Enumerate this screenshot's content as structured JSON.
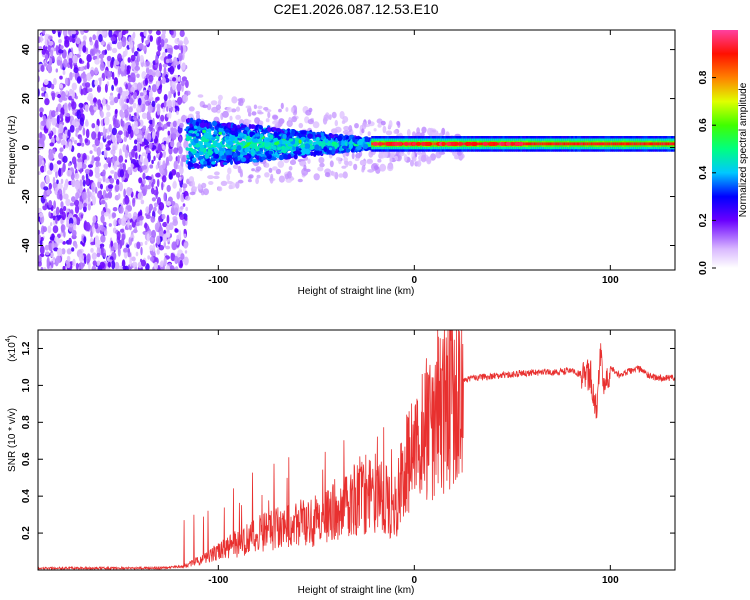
{
  "chart_data": [
    {
      "type": "heatmap",
      "title": "C2E1.2026.087.12.53.E10",
      "xlabel": "Height of straight line (km)",
      "ylabel": "Frequency (Hz)",
      "xlim": [
        -192,
        133
      ],
      "ylim": [
        -50,
        48
      ],
      "xticks": [
        -100,
        0,
        100
      ],
      "yticks": [
        -40,
        -20,
        0,
        20,
        40
      ],
      "colorbar": {
        "label": "Normalized spectral amplitude",
        "range": [
          0,
          1
        ],
        "ticks": [
          0.0,
          0.2,
          0.4,
          0.6,
          0.8
        ]
      },
      "description_regions": [
        {
          "x_range": [
            -192,
            -116
          ],
          "freq_range": [
            -50,
            48
          ],
          "amplitude": "0.0-0.25 scattered noise"
        },
        {
          "x_range": [
            -116,
            -20
          ],
          "freq_range": [
            -10,
            12
          ],
          "amplitude": "0.2-0.5 broadening band"
        },
        {
          "x_range": [
            -20,
            133
          ],
          "freq_range": [
            -1,
            4
          ],
          "amplitude": "0.5-0.95 narrow line near 1.5 Hz"
        }
      ]
    },
    {
      "type": "line",
      "xlabel": "Height of straight line (km)",
      "ylabel": "SNR (10 * v/v)",
      "multiplier_label": "(x10",
      "multiplier_exponent": "4",
      "xlim": [
        -192,
        133
      ],
      "ylim": [
        0,
        1.3
      ],
      "xticks": [
        -100,
        0,
        100
      ],
      "yticks": [
        0.2,
        0.4,
        0.6,
        0.8,
        1.0,
        1.2
      ],
      "series": [
        {
          "name": "SNR",
          "color": "#e8302f",
          "x": [
            -192,
            -170,
            -150,
            -130,
            -118,
            -110,
            -100,
            -90,
            -80,
            -70,
            -60,
            -50,
            -40,
            -30,
            -22,
            -15,
            -10,
            -5,
            0,
            5,
            10,
            15,
            20,
            25,
            30,
            40,
            50,
            60,
            70,
            80,
            85,
            90,
            93,
            95,
            97,
            100,
            105,
            110,
            115,
            120,
            125,
            133
          ],
          "y": [
            0.01,
            0.01,
            0.01,
            0.01,
            0.02,
            0.05,
            0.1,
            0.15,
            0.2,
            0.23,
            0.25,
            0.28,
            0.32,
            0.4,
            0.45,
            0.38,
            0.35,
            0.55,
            0.7,
            0.75,
            0.82,
            0.9,
            0.98,
            1.03,
            1.04,
            1.05,
            1.06,
            1.07,
            1.07,
            1.08,
            1.06,
            1.05,
            0.85,
            1.2,
            1.0,
            1.1,
            1.05,
            1.08,
            1.09,
            1.05,
            1.04,
            1.04
          ]
        }
      ]
    }
  ]
}
